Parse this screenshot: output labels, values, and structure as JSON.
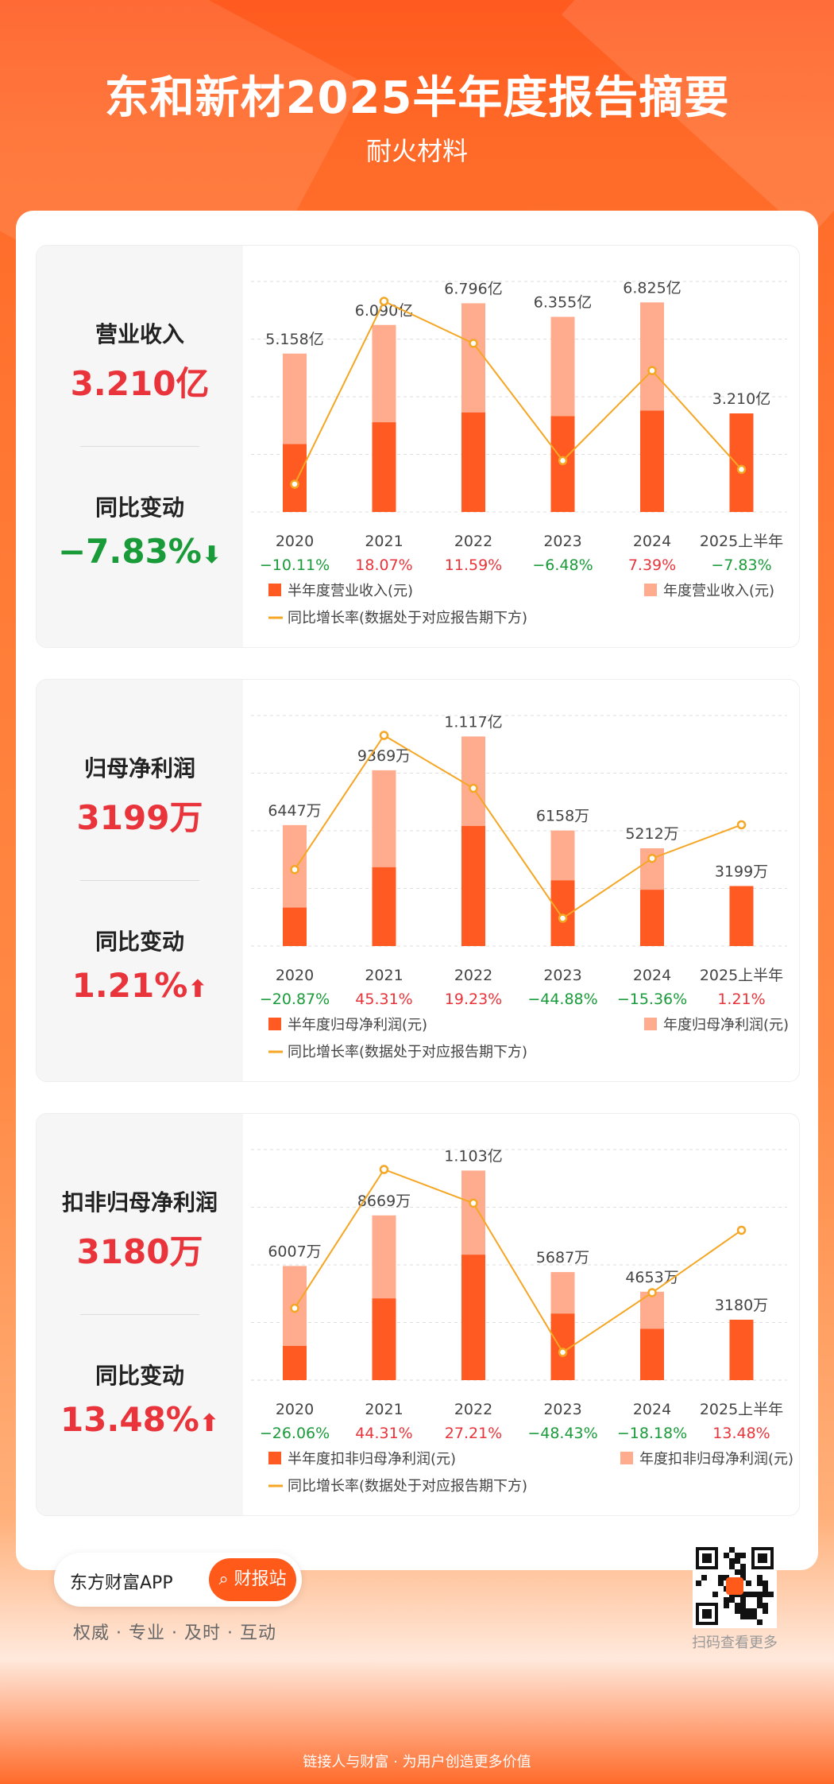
{
  "header": {
    "title": "东和新材2025半年度报告摘要",
    "subtitle": "耐火材料"
  },
  "colors": {
    "accent": "#ff5a1f",
    "half_bar": "#ff5a22",
    "annual_bar": "#ffac8e",
    "line": "#f5a623",
    "up_red": "#e8343a",
    "down_green": "#1a9b3a"
  },
  "panels": [
    {
      "kpi_label": "营业收入",
      "kpi_value": "3.210亿",
      "change_label": "同比变动",
      "change_value": "−7.83%",
      "change_direction": "down",
      "legend": {
        "half": "半年度营业收入(元)",
        "annual": "年度营业收入(元)",
        "line": "同比增长率(数据处于对应报告期下方)"
      }
    },
    {
      "kpi_label": "归母净利润",
      "kpi_value": "3199万",
      "change_label": "同比变动",
      "change_value": "1.21%",
      "change_direction": "up",
      "legend": {
        "half": "半年度归母净利润(元)",
        "annual": "年度归母净利润(元)",
        "line": "同比增长率(数据处于对应报告期下方)"
      }
    },
    {
      "kpi_label": "扣非归母净利润",
      "kpi_value": "3180万",
      "change_label": "同比变动",
      "change_value": "13.48%",
      "change_direction": "up",
      "legend": {
        "half": "半年度扣非归母净利润(元)",
        "annual": "年度扣非归母净利润(元)",
        "line": "同比增长率(数据处于对应报告期下方)"
      }
    }
  ],
  "chart_data": [
    {
      "type": "bar",
      "categories": [
        "2020",
        "2021",
        "2022",
        "2023",
        "2024",
        "2025上半年"
      ],
      "unit": "亿元",
      "series": [
        {
          "name": "半年度营业收入(元)",
          "values": [
            2.21,
            2.92,
            3.24,
            3.12,
            3.3,
            3.21
          ]
        },
        {
          "name": "年度营业收入(元)",
          "values": [
            5.158,
            6.09,
            6.796,
            6.355,
            6.825,
            null
          ]
        },
        {
          "name": "同比增长率(数据处于对应报告期下方)",
          "values": [
            -10.11,
            18.07,
            11.59,
            -6.48,
            7.39,
            -7.83
          ]
        }
      ],
      "bar_labels": [
        "5.158亿",
        "6.090亿",
        "6.796亿",
        "6.355亿",
        "6.825亿",
        "3.210亿"
      ],
      "growth_labels": [
        "−10.11%",
        "18.07%",
        "11.59%",
        "−6.48%",
        "7.39%",
        "−7.83%"
      ]
    },
    {
      "type": "bar",
      "categories": [
        "2020",
        "2021",
        "2022",
        "2023",
        "2024",
        "2025上半年"
      ],
      "unit": "万元",
      "series": [
        {
          "name": "半年度归母净利润(元)",
          "values": [
            2050,
            4200,
            6400,
            3500,
            3000,
            3199
          ]
        },
        {
          "name": "年度归母净利润(元)",
          "values": [
            6447,
            9369,
            11170,
            6158,
            5212,
            null
          ]
        },
        {
          "name": "同比增长率(数据处于对应报告期下方)",
          "values": [
            -20.87,
            45.31,
            19.23,
            -44.88,
            -15.36,
            1.21
          ]
        }
      ],
      "bar_labels": [
        "6447万",
        "9369万",
        "1.117亿",
        "6158万",
        "5212万",
        "3199万"
      ],
      "growth_labels": [
        "−20.87%",
        "45.31%",
        "19.23%",
        "−44.88%",
        "−15.36%",
        "1.21%"
      ]
    },
    {
      "type": "bar",
      "categories": [
        "2020",
        "2021",
        "2022",
        "2023",
        "2024",
        "2025上半年"
      ],
      "unit": "万元",
      "series": [
        {
          "name": "半年度扣非归母净利润(元)",
          "values": [
            1800,
            4300,
            6600,
            3500,
            2700,
            3180
          ]
        },
        {
          "name": "年度扣非归母净利润(元)",
          "values": [
            6007,
            8669,
            11030,
            5687,
            4653,
            null
          ]
        },
        {
          "name": "同比增长率(数据处于对应报告期下方)",
          "values": [
            -26.06,
            44.31,
            27.21,
            -48.43,
            -18.18,
            13.48
          ]
        }
      ],
      "bar_labels": [
        "6007万",
        "8669万",
        "1.103亿",
        "5687万",
        "4653万",
        "3180万"
      ],
      "growth_labels": [
        "−26.06%",
        "44.31%",
        "27.21%",
        "−48.43%",
        "−18.18%",
        "13.48%"
      ]
    }
  ],
  "footer": {
    "app_name": "东方财富APP",
    "button_label": "财报站",
    "slogan": "权威 · 专业 · 及时 · 互动",
    "qr_caption": "扫码查看更多",
    "bottom_text": "链接人与财富 · 为用户创造更多价值",
    "search_icon": "search-icon",
    "qr_icon": "qr-code-icon"
  }
}
